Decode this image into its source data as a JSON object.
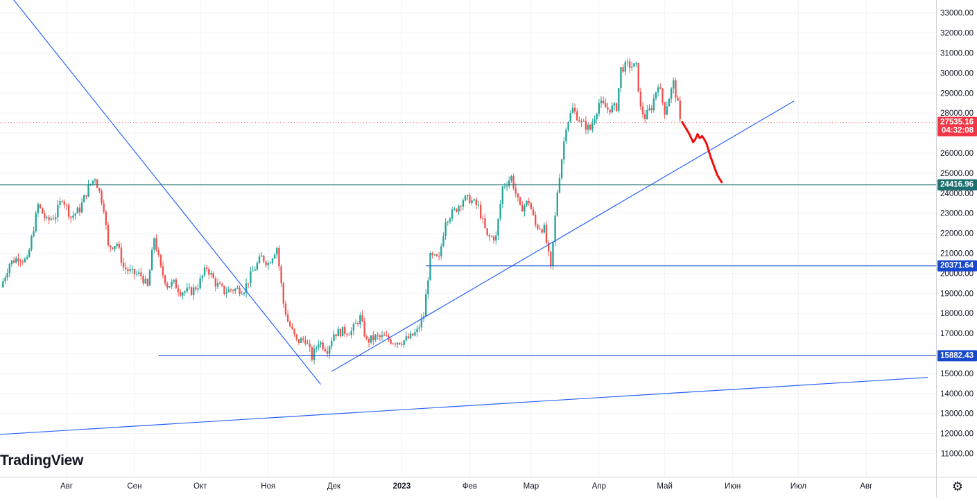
{
  "branding": {
    "logo": "TradingView"
  },
  "icons": {
    "settings": "gear-icon"
  },
  "colors": {
    "up": "#26a69a",
    "down": "#ef5350",
    "line": "#2962ff",
    "hline": "#1848cc",
    "price_label": "#f23645",
    "grid": "#f0f3fa",
    "axis_text": "#131722",
    "sketch": "#f20d0d"
  },
  "chart_data": {
    "type": "candlestick",
    "title": "",
    "xlabel": "",
    "ylabel": "",
    "ylim": [
      10300,
      34500
    ],
    "y_ticks": [
      "11000.00",
      "12000.00",
      "13000.00",
      "14000.00",
      "15000.00",
      "16000.00",
      "17000.00",
      "18000.00",
      "19000.00",
      "20000.00",
      "21000.00",
      "22000.00",
      "23000.00",
      "24000.00",
      "25000.00",
      "26000.00",
      "27000.00",
      "28000.00",
      "29000.00",
      "30000.00",
      "31000.00",
      "32000.00",
      "33000.00"
    ],
    "x_ticks": [
      "Авг",
      "Сен",
      "Окт",
      "Ноя",
      "Дек",
      "2023",
      "Фев",
      "Мар",
      "Апр",
      "Май",
      "Июн",
      "Июл",
      "Авг"
    ],
    "grid": true,
    "current_price": {
      "value": "27535.16",
      "countdown": "04:32:08"
    },
    "horizontal_levels": [
      {
        "value": 24416.96,
        "label": "24416.96"
      },
      {
        "value": 20371.64,
        "label": "20371.64"
      },
      {
        "value": 15882.43,
        "label": "15882.43"
      }
    ],
    "trendlines": [
      {
        "from": [
          "2022-07-01",
          34600
        ],
        "to": [
          "2022-11-25",
          14450
        ]
      },
      {
        "from": [
          "2022-11-30",
          15100
        ],
        "to": [
          "2023-06-29",
          28600
        ]
      },
      {
        "from": [
          "2022-07-01",
          11950
        ],
        "to": [
          "2023-08-29",
          14800
        ]
      }
    ],
    "forecast_sketch": [
      [
        "2023-05-09",
        27550
      ],
      [
        "2023-05-12",
        27000
      ],
      [
        "2023-05-14",
        26550
      ],
      [
        "2023-05-15",
        26700
      ],
      [
        "2023-05-16",
        26950
      ],
      [
        "2023-05-17",
        26750
      ],
      [
        "2023-05-18",
        26850
      ],
      [
        "2023-05-19",
        26700
      ],
      [
        "2023-05-20",
        26500
      ],
      [
        "2023-05-22",
        25800
      ],
      [
        "2023-05-25",
        24900
      ],
      [
        "2023-05-27",
        24550
      ]
    ],
    "series_daily_close": [
      [
        "2022-07-02",
        19300
      ],
      [
        "2022-07-06",
        20500
      ],
      [
        "2022-07-10",
        20800
      ],
      [
        "2022-07-14",
        20600
      ],
      [
        "2022-07-19",
        23400
      ],
      [
        "2022-07-23",
        22600
      ],
      [
        "2022-07-27",
        22900
      ],
      [
        "2022-07-30",
        23800
      ],
      [
        "2022-08-03",
        22800
      ],
      [
        "2022-08-07",
        23200
      ],
      [
        "2022-08-11",
        24300
      ],
      [
        "2022-08-14",
        24800
      ],
      [
        "2022-08-18",
        23300
      ],
      [
        "2022-08-20",
        21300
      ],
      [
        "2022-08-24",
        21500
      ],
      [
        "2022-08-27",
        20300
      ],
      [
        "2022-08-31",
        20000
      ],
      [
        "2022-09-04",
        19900
      ],
      [
        "2022-09-07",
        19300
      ],
      [
        "2022-09-10",
        21800
      ],
      [
        "2022-09-13",
        20200
      ],
      [
        "2022-09-16",
        19400
      ],
      [
        "2022-09-19",
        19500
      ],
      [
        "2022-09-22",
        19100
      ],
      [
        "2022-09-27",
        19100
      ],
      [
        "2022-09-30",
        19400
      ],
      [
        "2022-10-04",
        20300
      ],
      [
        "2022-10-08",
        19500
      ],
      [
        "2022-10-12",
        19100
      ],
      [
        "2022-10-16",
        19200
      ],
      [
        "2022-10-21",
        19200
      ],
      [
        "2022-10-25",
        20100
      ],
      [
        "2022-10-29",
        20800
      ],
      [
        "2022-11-01",
        20500
      ],
      [
        "2022-11-05",
        21300
      ],
      [
        "2022-11-08",
        18500
      ],
      [
        "2022-11-10",
        17600
      ],
      [
        "2022-11-14",
        16600
      ],
      [
        "2022-11-18",
        16700
      ],
      [
        "2022-11-21",
        15800
      ],
      [
        "2022-11-24",
        16600
      ],
      [
        "2022-11-28",
        16200
      ],
      [
        "2022-12-01",
        17000
      ],
      [
        "2022-12-05",
        17100
      ],
      [
        "2022-12-09",
        17100
      ],
      [
        "2022-12-13",
        17800
      ],
      [
        "2022-12-16",
        16600
      ],
      [
        "2022-12-20",
        16800
      ],
      [
        "2022-12-24",
        16800
      ],
      [
        "2022-12-28",
        16600
      ],
      [
        "2023-01-01",
        16600
      ],
      [
        "2023-01-05",
        16800
      ],
      [
        "2023-01-08",
        17100
      ],
      [
        "2023-01-11",
        17900
      ],
      [
        "2023-01-14",
        20800
      ],
      [
        "2023-01-18",
        20700
      ],
      [
        "2023-01-21",
        22700
      ],
      [
        "2023-01-25",
        23100
      ],
      [
        "2023-01-29",
        23700
      ],
      [
        "2023-02-01",
        23700
      ],
      [
        "2023-02-05",
        23300
      ],
      [
        "2023-02-09",
        21800
      ],
      [
        "2023-02-13",
        21800
      ],
      [
        "2023-02-16",
        24300
      ],
      [
        "2023-02-20",
        24800
      ],
      [
        "2023-02-24",
        23200
      ],
      [
        "2023-02-28",
        23600
      ],
      [
        "2023-03-03",
        22400
      ],
      [
        "2023-03-07",
        22200
      ],
      [
        "2023-03-10",
        20200
      ],
      [
        "2023-03-13",
        24100
      ],
      [
        "2023-03-17",
        27400
      ],
      [
        "2023-03-20",
        28200
      ],
      [
        "2023-03-24",
        27500
      ],
      [
        "2023-03-28",
        27200
      ],
      [
        "2023-04-01",
        28500
      ],
      [
        "2023-04-05",
        28200
      ],
      [
        "2023-04-09",
        28300
      ],
      [
        "2023-04-11",
        30200
      ],
      [
        "2023-04-14",
        30400
      ],
      [
        "2023-04-18",
        30300
      ],
      [
        "2023-04-20",
        28200
      ],
      [
        "2023-04-22",
        27800
      ],
      [
        "2023-04-25",
        28300
      ],
      [
        "2023-04-28",
        29500
      ],
      [
        "2023-05-01",
        28100
      ],
      [
        "2023-05-03",
        28800
      ],
      [
        "2023-05-05",
        29500
      ],
      [
        "2023-05-07",
        28400
      ],
      [
        "2023-05-08",
        27535
      ]
    ]
  }
}
